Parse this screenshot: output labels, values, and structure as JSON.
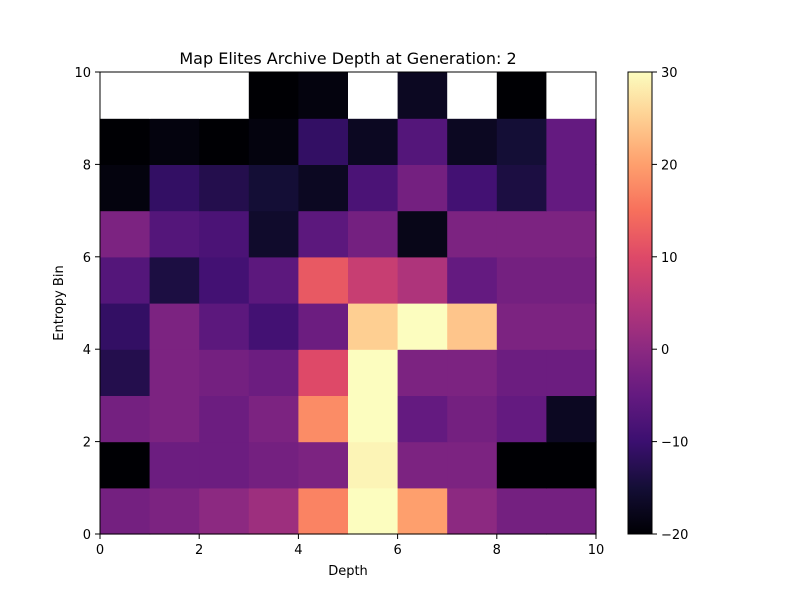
{
  "chart_data": {
    "type": "heatmap",
    "title": "Map Elites Archive Depth at Generation: 2",
    "xlabel": "Depth",
    "ylabel": "Entropy Bin",
    "xlim": [
      0,
      10
    ],
    "ylim": [
      0,
      10
    ],
    "x_ticks": [
      "0",
      "2",
      "4",
      "6",
      "8",
      "10"
    ],
    "y_ticks": [
      "0",
      "2",
      "4",
      "6",
      "8",
      "10"
    ],
    "colormap": "magma",
    "colorbar": {
      "min": -20,
      "max": 30,
      "ticks": [
        "30",
        "20",
        "10",
        "0",
        "−10",
        "−20"
      ]
    },
    "empty_cell_color": "#ffffff",
    "grid_rows_bottom_to_top": [
      [
        -3,
        -2,
        0,
        2,
        17,
        30,
        20,
        0,
        -3,
        -3
      ],
      [
        -20,
        -4,
        -4,
        -3,
        -2,
        29,
        -2,
        -2,
        -20,
        -20
      ],
      [
        -3,
        -2,
        -4,
        -2,
        18,
        30,
        -5,
        -3,
        -5,
        -17
      ],
      [
        -13,
        -2,
        -3,
        -4,
        10,
        30,
        -2,
        -2,
        -4,
        -4
      ],
      [
        -11,
        -2,
        -6,
        -9,
        -4,
        25,
        30,
        24,
        -2,
        -2
      ],
      [
        -7,
        -14,
        -9,
        -6,
        12,
        7,
        4,
        -5,
        -3,
        -3
      ],
      [
        -2,
        -7,
        -8,
        -16,
        -6,
        -3,
        -18,
        -2,
        -2,
        -2
      ],
      [
        -19,
        -11,
        -13,
        -15,
        -17,
        -8,
        -3,
        -9,
        -14,
        -5
      ],
      [
        -20,
        -19,
        -20,
        -19,
        -11,
        -17,
        -7,
        -17,
        -15,
        -5
      ],
      [
        null,
        null,
        null,
        -20,
        -19,
        null,
        -17,
        null,
        -20,
        null
      ]
    ]
  }
}
